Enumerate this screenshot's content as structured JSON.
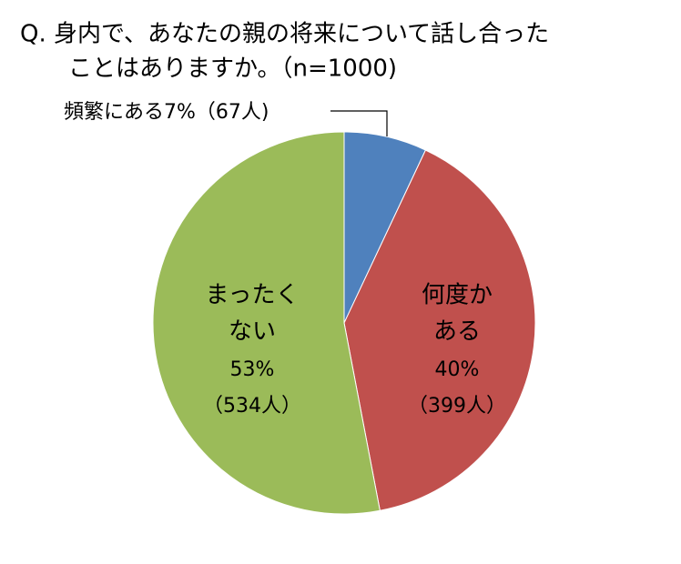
{
  "chart_data": {
    "type": "pie",
    "title_lines": [
      "Q. 身内で、あなたの親の将来について話し合った",
      "ことはありますか。（n=1000)"
    ],
    "categories": [
      [
        "頻繁にある"
      ],
      [
        "何度か",
        "ある"
      ],
      [
        "まったく",
        "ない"
      ]
    ],
    "values": [
      7,
      40,
      53
    ],
    "value_labels": [
      "7%",
      "40%",
      "53%"
    ],
    "counts": [
      67,
      399,
      534
    ],
    "count_labels": [
      "（67人)",
      "（399人）",
      "（534人）"
    ],
    "colors": [
      "#4f81bd",
      "#c0504d",
      "#9bbb59"
    ]
  }
}
